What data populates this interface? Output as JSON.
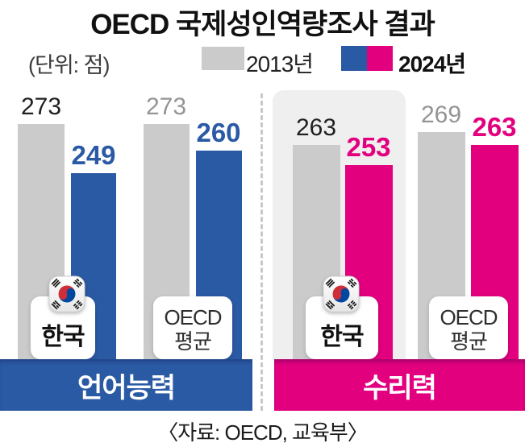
{
  "title": "OECD 국제성인역량조사 결과",
  "unit_label": "(단위: 점)",
  "legend": {
    "label_2013": "2013년",
    "label_2024": "2024년"
  },
  "source": "〈자료: OECD, 교육부〉",
  "colors": {
    "blue": "#2b5aa4",
    "magenta": "#e2007f",
    "gray": "#cbcbcb"
  },
  "chart_data": {
    "type": "bar",
    "title": "OECD 국제성인역량조사 결과",
    "unit": "점",
    "series_years": [
      "2013",
      "2024"
    ],
    "legend_position": "top",
    "sections": [
      {
        "name": "언어능력",
        "accent_color": "#2b5aa4",
        "groups": [
          {
            "label": "한국",
            "values": {
              "2013": 273,
              "2024": 249
            }
          },
          {
            "label": "OECD 평균",
            "label_lines": [
              "OECD",
              "평균"
            ],
            "values": {
              "2013": 273,
              "2024": 260
            }
          }
        ]
      },
      {
        "name": "수리력",
        "accent_color": "#e2007f",
        "groups": [
          {
            "label": "한국",
            "values": {
              "2013": 263,
              "2024": 253
            }
          },
          {
            "label": "OECD 평균",
            "label_lines": [
              "OECD",
              "평균"
            ],
            "values": {
              "2013": 269,
              "2024": 263
            }
          }
        ]
      }
    ]
  }
}
